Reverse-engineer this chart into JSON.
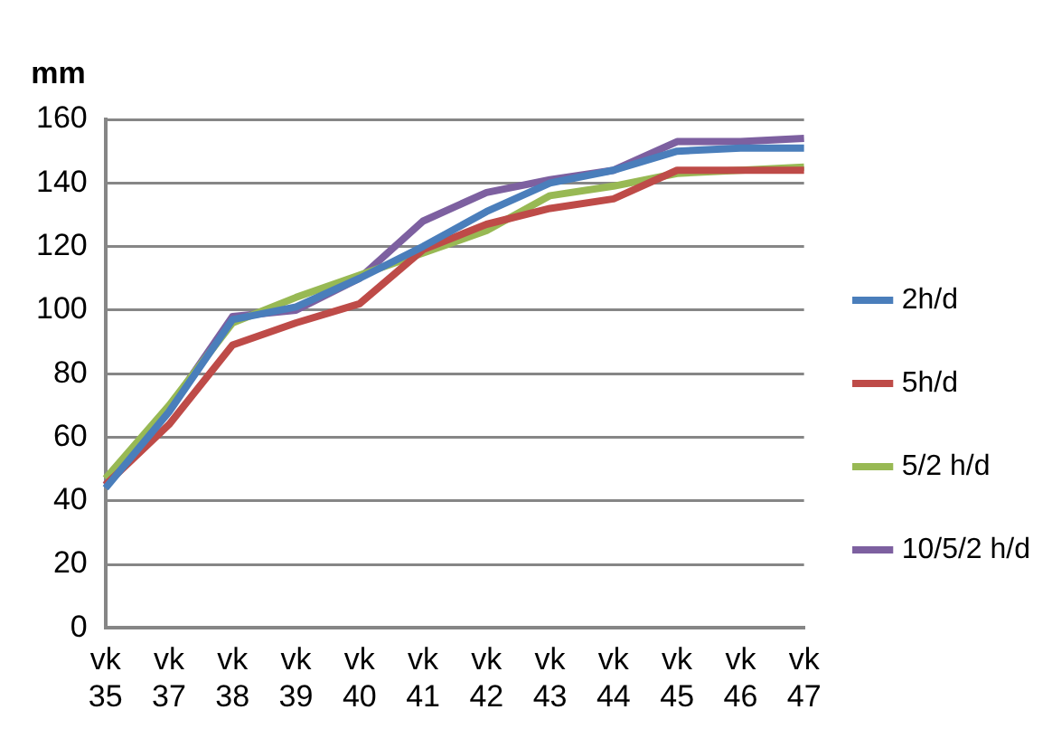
{
  "chart_data": {
    "type": "line",
    "ylabel": "mm",
    "categories": [
      "vk 35",
      "vk 37",
      "vk 38",
      "vk 39",
      "vk 40",
      "vk 41",
      "vk 42",
      "vk 43",
      "vk 44",
      "vk 45",
      "vk 46",
      "vk 47"
    ],
    "series": [
      {
        "name": "2h/d",
        "color": "#4a7ebb",
        "values": [
          44,
          68,
          97,
          101,
          110,
          120,
          131,
          140,
          144,
          150,
          151,
          151
        ]
      },
      {
        "name": "5h/d",
        "color": "#be4b48",
        "values": [
          45,
          64,
          89,
          96,
          102,
          119,
          127,
          132,
          135,
          144,
          144,
          144
        ]
      },
      {
        "name": "5/2 h/d",
        "color": "#98b954",
        "values": [
          47,
          70,
          96,
          104,
          111,
          118,
          125,
          136,
          139,
          143,
          144,
          145
        ]
      },
      {
        "name": "10/5/2 h/d",
        "color": "#7d60a0",
        "values": [
          45,
          69,
          98,
          100,
          110,
          128,
          137,
          141,
          144,
          153,
          153,
          154
        ]
      }
    ],
    "ylim": [
      0,
      160
    ],
    "yticks": [
      0,
      20,
      40,
      60,
      80,
      100,
      120,
      140,
      160
    ],
    "grid": "y",
    "legend": "right",
    "marker": "none",
    "line_style": "solid"
  }
}
